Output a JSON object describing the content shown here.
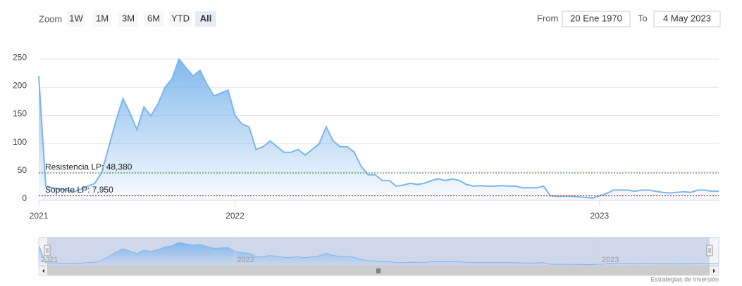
{
  "chart_data": {
    "type": "area",
    "color": "#7cb5ec",
    "categories": [
      "2021",
      null,
      null,
      null,
      null,
      null,
      null,
      null,
      null,
      null,
      null,
      null,
      null,
      null,
      null,
      null,
      null,
      null,
      null,
      null,
      null,
      null,
      null,
      null,
      null,
      null,
      null,
      null,
      "2022",
      null,
      null,
      null,
      null,
      null,
      null,
      null,
      null,
      null,
      null,
      null,
      null,
      null,
      null,
      null,
      null,
      null,
      null,
      null,
      null,
      null,
      null,
      null,
      null,
      null,
      null,
      null,
      null,
      null,
      null,
      null,
      null,
      null,
      null,
      null,
      null,
      null,
      null,
      null,
      null,
      null,
      null,
      null,
      null,
      null,
      null,
      null,
      null,
      null,
      null,
      null,
      "2023",
      null,
      null,
      null,
      null,
      null,
      null,
      null,
      null,
      null,
      null,
      null,
      null,
      null,
      null,
      null,
      null,
      null
    ],
    "values": [
      220,
      25,
      22,
      20,
      18,
      15,
      20,
      25,
      30,
      50,
      95,
      140,
      180,
      155,
      125,
      165,
      150,
      170,
      200,
      215,
      250,
      235,
      220,
      230,
      205,
      185,
      190,
      195,
      150,
      135,
      130,
      90,
      95,
      105,
      95,
      85,
      85,
      90,
      80,
      90,
      100,
      130,
      105,
      95,
      95,
      85,
      60,
      45,
      45,
      35,
      35,
      25,
      27,
      30,
      28,
      30,
      35,
      38,
      35,
      38,
      35,
      28,
      25,
      26,
      25,
      25,
      26,
      25,
      25,
      22,
      22,
      22,
      25,
      8,
      7,
      7,
      7,
      6,
      5,
      4,
      8,
      12,
      18,
      18,
      18,
      16,
      18,
      18,
      16,
      14,
      13,
      14,
      15,
      14,
      18,
      18,
      16,
      16
    ],
    "ylim": [
      0,
      290
    ],
    "yticks": [
      0,
      50,
      100,
      150,
      200,
      250
    ],
    "grid": true,
    "plot_lines": [
      {
        "value": 48.38,
        "label": "Resistencia LP: 48,380",
        "color": "#1f7a1f"
      },
      {
        "value": 7.95,
        "label": "Soporte LP: 7,950",
        "color": "#a01818"
      }
    ]
  },
  "range_selector": {
    "label": "Zoom",
    "buttons": [
      "1W",
      "1M",
      "3M",
      "6M",
      "YTD",
      "All"
    ],
    "selected": 5
  },
  "date_inputs": {
    "from_label": "From",
    "from": "20 Ene 1970",
    "to_label": "To",
    "to": "4 May 2023"
  },
  "credits": "Estrategias de Inversión"
}
